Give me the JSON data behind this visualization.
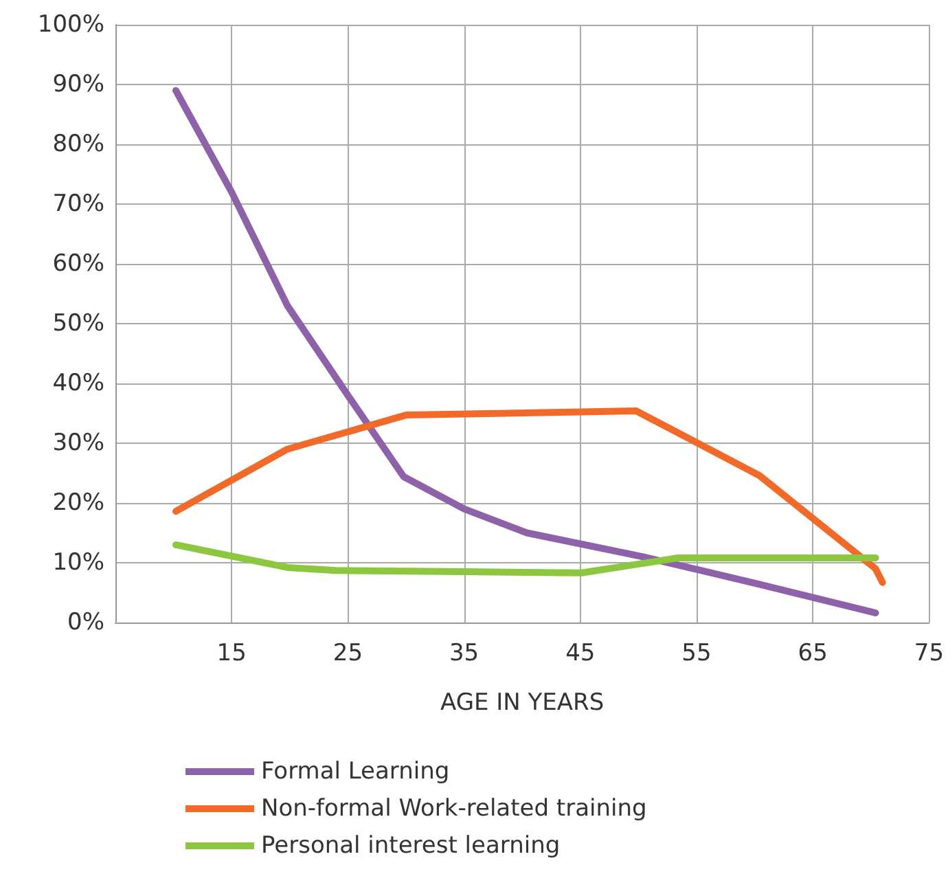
{
  "chart_data": {
    "type": "line",
    "xlabel": "AGE IN YEARS",
    "xlim": [
      5,
      75
    ],
    "xticks": [
      15,
      25,
      35,
      45,
      55,
      65,
      75
    ],
    "ylim": [
      0,
      100
    ],
    "yticks": [
      {
        "value": 0,
        "label": "0%"
      },
      {
        "value": 10,
        "label": "10%"
      },
      {
        "value": 20,
        "label": "20%"
      },
      {
        "value": 30,
        "label": "30%"
      },
      {
        "value": 40,
        "label": "40%"
      },
      {
        "value": 50,
        "label": "50%"
      },
      {
        "value": 60,
        "label": "60%"
      },
      {
        "value": 70,
        "label": "70%"
      },
      {
        "value": 80,
        "label": "80%"
      },
      {
        "value": 90,
        "label": "90%"
      },
      {
        "value": 100,
        "label": "100%"
      }
    ],
    "grid": true,
    "legend": "bottom",
    "marker": "none",
    "line_style": "solid",
    "series": [
      {
        "name": "Formal Learning",
        "color": "#8e62a8",
        "x": [
          10.2,
          15,
          19.8,
          25,
          29.8,
          35,
          40.4,
          50.4,
          60.4,
          70.4
        ],
        "values": [
          89,
          72,
          53,
          38,
          24.4,
          19,
          15,
          11,
          6.4,
          1.6
        ]
      },
      {
        "name": "Non-formal Work-related training",
        "color": "#f26a2a",
        "x": [
          10.2,
          19.8,
          30,
          49.8,
          60.4,
          70.4,
          71
        ],
        "values": [
          18.6,
          29,
          34.7,
          35.4,
          24.6,
          9,
          6.7
        ]
      },
      {
        "name": "Personal interest learning",
        "color": "#8dc63f",
        "x": [
          10.2,
          19.8,
          24,
          35,
          45.1,
          50.4,
          53.4,
          70.4
        ],
        "values": [
          13,
          9.2,
          8.7,
          8.5,
          8.3,
          9.9,
          10.8,
          10.8
        ]
      }
    ]
  }
}
